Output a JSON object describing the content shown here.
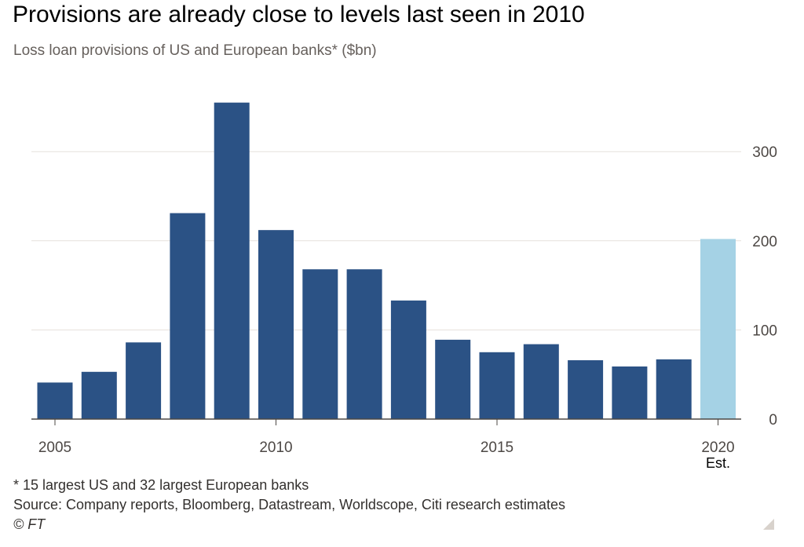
{
  "header": {
    "title": "Provisions are already close to levels last seen in 2010",
    "subtitle": "Loss loan provisions of US and European banks* ($bn)"
  },
  "footer": {
    "note": "* 15 largest US and 32 largest European banks",
    "source": "Source: Company reports, Bloomberg, Datastream, Worldscope, Citi research estimates",
    "credit": "© FT"
  },
  "chart_data": {
    "type": "bar",
    "title": "Provisions are already close to levels last seen in 2010",
    "subtitle": "Loss loan provisions of US and European banks* ($bn)",
    "xlabel": "",
    "ylabel": "",
    "categories": [
      "2005",
      "2006",
      "2007",
      "2008",
      "2009",
      "2010",
      "2011",
      "2012",
      "2013",
      "2014",
      "2015",
      "2016",
      "2017",
      "2018",
      "2019",
      "2020"
    ],
    "values": [
      41,
      53,
      86,
      231,
      355,
      212,
      168,
      168,
      133,
      89,
      75,
      84,
      66,
      59,
      67,
      202
    ],
    "estimated": [
      false,
      false,
      false,
      false,
      false,
      false,
      false,
      false,
      false,
      false,
      false,
      false,
      false,
      false,
      false,
      true
    ],
    "x_tick_labels": [
      "2005",
      "2010",
      "2015",
      "2020"
    ],
    "x_tick_sublabel": {
      "category": "2020",
      "text": "Est."
    },
    "y_ticks": [
      0,
      100,
      200,
      300
    ],
    "ylim": [
      0,
      360
    ],
    "y_axis_position": "right",
    "grid": true,
    "colors": {
      "actual": "#2b5285",
      "estimate": "#a5d2e5",
      "grid": "#e6e1dc",
      "axis": "#4d4845"
    }
  }
}
